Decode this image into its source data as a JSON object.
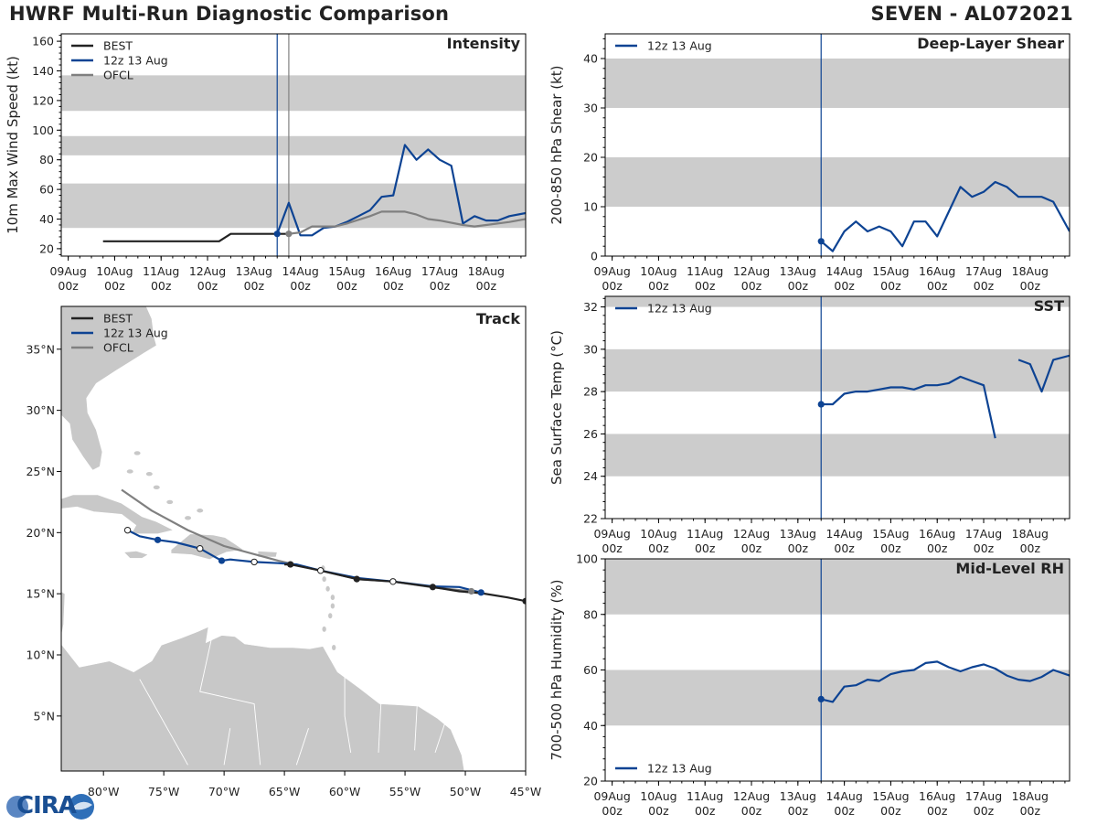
{
  "header": {
    "title": "HWRF Multi-Run Diagnostic Comparison",
    "storm": "SEVEN - AL072021"
  },
  "colors": {
    "best": "#222222",
    "run": "#0d4393",
    "ofcl": "#808080",
    "band": "#cccccc",
    "land": "#c8c8c8"
  },
  "logo": {
    "text": "CIRA",
    "icon": "cira-globe-icon"
  },
  "time_axis": {
    "ticks": [
      {
        "t": 0,
        "l1": "09Aug",
        "l2": "00z"
      },
      {
        "t": 1,
        "l1": "10Aug",
        "l2": "00z"
      },
      {
        "t": 2,
        "l1": "11Aug",
        "l2": "00z"
      },
      {
        "t": 3,
        "l1": "12Aug",
        "l2": "00z"
      },
      {
        "t": 4,
        "l1": "13Aug",
        "l2": "00z"
      },
      {
        "t": 5,
        "l1": "14Aug",
        "l2": "00z"
      },
      {
        "t": 6,
        "l1": "15Aug",
        "l2": "00z"
      },
      {
        "t": 7,
        "l1": "16Aug",
        "l2": "00z"
      },
      {
        "t": 8,
        "l1": "17Aug",
        "l2": "00z"
      },
      {
        "t": 9,
        "l1": "18Aug",
        "l2": "00z"
      }
    ],
    "range": [
      -0.15,
      9.85
    ]
  },
  "chart_data": [
    {
      "type": "line",
      "id": "intensity",
      "title": "Intensity",
      "ylabel": "10m Max Wind Speed (kt)",
      "xlabel": "",
      "ylim": [
        15,
        165
      ],
      "yticks": [
        20,
        40,
        60,
        80,
        100,
        120,
        140,
        160
      ],
      "bands": [
        [
          34,
          64
        ],
        [
          83,
          96
        ],
        [
          113,
          137
        ]
      ],
      "vlines": [
        {
          "t": 4.5,
          "series": "run"
        },
        {
          "t": 4.75,
          "series": "ofcl"
        }
      ],
      "legend": [
        {
          "label": "BEST",
          "series": "best"
        },
        {
          "label": "12z 13 Aug",
          "series": "run"
        },
        {
          "label": "OFCL",
          "series": "ofcl"
        }
      ],
      "legend_position": "top-left",
      "series": [
        {
          "name": "BEST",
          "key": "best",
          "points": [
            [
              0.75,
              25
            ],
            [
              1,
              25
            ],
            [
              1.5,
              25
            ],
            [
              2,
              25
            ],
            [
              2.5,
              25
            ],
            [
              3,
              25
            ],
            [
              3.25,
              25
            ],
            [
              3.5,
              30
            ],
            [
              4,
              30
            ],
            [
              4.5,
              30
            ],
            [
              4.75,
              30
            ]
          ]
        },
        {
          "name": "12z 13 Aug",
          "key": "run",
          "points": [
            [
              4.5,
              30
            ],
            [
              4.75,
              51
            ],
            [
              5,
              29
            ],
            [
              5.25,
              29
            ],
            [
              5.5,
              34
            ],
            [
              5.75,
              35
            ],
            [
              6,
              38
            ],
            [
              6.25,
              42
            ],
            [
              6.5,
              46
            ],
            [
              6.75,
              55
            ],
            [
              7,
              56
            ],
            [
              7.25,
              90
            ],
            [
              7.5,
              80
            ],
            [
              7.75,
              87
            ],
            [
              8,
              80
            ],
            [
              8.25,
              76
            ],
            [
              8.5,
              37
            ],
            [
              8.75,
              42
            ],
            [
              9,
              39
            ],
            [
              9.25,
              39
            ],
            [
              9.5,
              42
            ],
            [
              9.85,
              44
            ]
          ],
          "start_marker": true
        },
        {
          "name": "OFCL",
          "key": "ofcl",
          "points": [
            [
              4.75,
              30
            ],
            [
              5,
              31
            ],
            [
              5.25,
              35
            ],
            [
              5.5,
              35
            ],
            [
              5.75,
              35
            ],
            [
              6,
              37
            ],
            [
              6.5,
              42
            ],
            [
              6.75,
              45
            ],
            [
              7,
              45
            ],
            [
              7.25,
              45
            ],
            [
              7.5,
              43
            ],
            [
              7.75,
              40
            ],
            [
              8,
              39
            ],
            [
              8.5,
              36
            ],
            [
              8.75,
              35
            ],
            [
              9,
              36
            ],
            [
              9.5,
              38
            ],
            [
              9.85,
              40
            ]
          ],
          "start_marker": true
        }
      ]
    },
    {
      "type": "line",
      "id": "shear",
      "title": "Deep-Layer Shear",
      "ylabel": "200-850 hPa Shear (kt)",
      "xlabel": "",
      "ylim": [
        0,
        45
      ],
      "yticks": [
        0,
        10,
        20,
        30,
        40
      ],
      "bands": [
        [
          10,
          20
        ],
        [
          30,
          40
        ]
      ],
      "vlines": [
        {
          "t": 4.5,
          "series": "run"
        }
      ],
      "legend": [
        {
          "label": "12z 13 Aug",
          "series": "run"
        }
      ],
      "legend_position": "top-left",
      "series": [
        {
          "name": "12z 13 Aug",
          "key": "run",
          "points": [
            [
              4.5,
              3
            ],
            [
              4.75,
              1
            ],
            [
              5,
              5
            ],
            [
              5.25,
              7
            ],
            [
              5.5,
              5
            ],
            [
              5.75,
              6
            ],
            [
              6,
              5
            ],
            [
              6.25,
              2
            ],
            [
              6.5,
              7
            ],
            [
              6.75,
              7
            ],
            [
              7,
              4
            ],
            [
              7.25,
              9
            ],
            [
              7.5,
              14
            ],
            [
              7.75,
              12
            ],
            [
              8,
              13
            ],
            [
              8.25,
              15
            ],
            [
              8.5,
              14
            ],
            [
              8.75,
              12
            ],
            [
              9,
              12
            ],
            [
              9.25,
              12
            ],
            [
              9.5,
              11
            ],
            [
              9.85,
              5
            ]
          ],
          "start_marker": true
        }
      ]
    },
    {
      "type": "line",
      "id": "sst",
      "title": "SST",
      "ylabel": "Sea Surface Temp (°C)",
      "xlabel": "",
      "ylim": [
        22,
        32.5
      ],
      "yticks": [
        22,
        24,
        26,
        28,
        30,
        32
      ],
      "bands": [
        [
          24,
          26
        ],
        [
          28,
          30
        ],
        [
          32,
          33
        ]
      ],
      "vlines": [
        {
          "t": 4.5,
          "series": "run"
        }
      ],
      "legend": [
        {
          "label": "12z 13 Aug",
          "series": "run"
        }
      ],
      "legend_position": "top-left",
      "series": [
        {
          "name": "12z 13 Aug",
          "key": "run",
          "segments": [
            [
              [
                4.5,
                27.4
              ],
              [
                4.75,
                27.4
              ],
              [
                5,
                27.9
              ],
              [
                5.25,
                28.0
              ],
              [
                5.5,
                28.0
              ],
              [
                5.75,
                28.1
              ],
              [
                6,
                28.2
              ],
              [
                6.25,
                28.2
              ],
              [
                6.5,
                28.1
              ],
              [
                6.75,
                28.3
              ],
              [
                7,
                28.3
              ],
              [
                7.25,
                28.4
              ],
              [
                7.5,
                28.7
              ],
              [
                7.75,
                28.5
              ],
              [
                8,
                28.3
              ],
              [
                8.25,
                25.8
              ]
            ],
            [
              [
                8.75,
                29.5
              ],
              [
                9,
                29.3
              ],
              [
                9.25,
                28.0
              ],
              [
                9.5,
                29.5
              ],
              [
                9.85,
                29.7
              ]
            ]
          ],
          "start_marker": true
        }
      ]
    },
    {
      "type": "line",
      "id": "rh",
      "title": "Mid-Level RH",
      "ylabel": "700-500 hPa Humidity (%)",
      "xlabel": "",
      "ylim": [
        20,
        100
      ],
      "yticks": [
        20,
        40,
        60,
        80,
        100
      ],
      "bands": [
        [
          40,
          60
        ],
        [
          80,
          100
        ]
      ],
      "vlines": [
        {
          "t": 4.5,
          "series": "run"
        }
      ],
      "legend": [
        {
          "label": "12z 13 Aug",
          "series": "run"
        }
      ],
      "legend_position": "bottom-left",
      "series": [
        {
          "name": "12z 13 Aug",
          "key": "run",
          "points": [
            [
              4.5,
              49.5
            ],
            [
              4.75,
              48.5
            ],
            [
              5,
              54
            ],
            [
              5.25,
              54.5
            ],
            [
              5.5,
              56.5
            ],
            [
              5.75,
              56
            ],
            [
              6,
              58.5
            ],
            [
              6.25,
              59.5
            ],
            [
              6.5,
              60
            ],
            [
              6.75,
              62.5
            ],
            [
              7,
              63
            ],
            [
              7.25,
              61
            ],
            [
              7.5,
              59.5
            ],
            [
              7.75,
              61
            ],
            [
              8,
              62
            ],
            [
              8.25,
              60.5
            ],
            [
              8.5,
              58
            ],
            [
              8.75,
              56.5
            ],
            [
              9,
              56
            ],
            [
              9.25,
              57.5
            ],
            [
              9.5,
              60
            ],
            [
              9.85,
              58
            ]
          ],
          "start_marker": true
        }
      ]
    },
    {
      "type": "scatter",
      "id": "track",
      "title": "Track",
      "xlabel": "",
      "ylabel": "",
      "xlim": [
        -83.5,
        -45
      ],
      "ylim": [
        0.5,
        38.5
      ],
      "xticks": [
        {
          "v": -80,
          "label": "80°W"
        },
        {
          "v": -75,
          "label": "75°W"
        },
        {
          "v": -70,
          "label": "70°W"
        },
        {
          "v": -65,
          "label": "65°W"
        },
        {
          "v": -60,
          "label": "60°W"
        },
        {
          "v": -55,
          "label": "55°W"
        },
        {
          "v": -50,
          "label": "50°W"
        },
        {
          "v": -45,
          "label": "45°W"
        }
      ],
      "yticks": [
        {
          "v": 5,
          "label": "5°N"
        },
        {
          "v": 10,
          "label": "10°N"
        },
        {
          "v": 15,
          "label": "15°N"
        },
        {
          "v": 20,
          "label": "20°N"
        },
        {
          "v": 25,
          "label": "25°N"
        },
        {
          "v": 30,
          "label": "30°N"
        },
        {
          "v": 35,
          "label": "35°N"
        }
      ],
      "legend": [
        {
          "label": "BEST",
          "series": "best"
        },
        {
          "label": "12z 13 Aug",
          "series": "run"
        },
        {
          "label": "OFCL",
          "series": "ofcl"
        }
      ],
      "legend_position": "top-left",
      "series": [
        {
          "name": "BEST",
          "key": "best",
          "points": [
            [
              -45,
              14.4
            ],
            [
              -46.5,
              14.7
            ],
            [
              -48.7,
              15.05
            ],
            [
              -50.5,
              15.2
            ],
            [
              -52.7,
              15.55
            ],
            [
              -56,
              16
            ],
            [
              -59,
              16.2
            ],
            [
              -62,
              16.9
            ],
            [
              -64.5,
              17.4
            ],
            [
              -65,
              17.4
            ]
          ],
          "markers": [
            [
              -45,
              14.4
            ],
            [
              -52.7,
              15.55
            ],
            [
              -59,
              16.2
            ],
            [
              -64.5,
              17.4
            ]
          ]
        },
        {
          "name": "12z 13 Aug",
          "key": "run",
          "points": [
            [
              -48.7,
              15.1
            ],
            [
              -50.5,
              15.55
            ],
            [
              -52.7,
              15.6
            ],
            [
              -56,
              16.0
            ],
            [
              -59,
              16.3
            ],
            [
              -62,
              16.9
            ],
            [
              -64,
              17.4
            ],
            [
              -65.5,
              17.5
            ],
            [
              -67.5,
              17.6
            ],
            [
              -69.5,
              17.8
            ],
            [
              -70.2,
              17.7
            ],
            [
              -72,
              18.7
            ],
            [
              -74,
              19.2
            ],
            [
              -75.5,
              19.4
            ],
            [
              -77,
              19.7
            ],
            [
              -78,
              20.2
            ]
          ],
          "markers": [
            [
              -48.7,
              15.1
            ],
            [
              -70.2,
              17.7
            ],
            [
              -75.5,
              19.4
            ]
          ],
          "open_markers": [
            [
              -56,
              16.0
            ],
            [
              -62,
              16.9
            ],
            [
              -67.5,
              17.6
            ],
            [
              -72,
              18.7
            ],
            [
              -78,
              20.2
            ]
          ]
        },
        {
          "name": "OFCL",
          "key": "ofcl",
          "points": [
            [
              -49.5,
              15.2
            ],
            [
              -52.5,
              15.5
            ],
            [
              -56,
              16.0
            ],
            [
              -59,
              16.2
            ],
            [
              -62,
              16.9
            ],
            [
              -65.5,
              17.7
            ],
            [
              -70,
              18.9
            ],
            [
              -73,
              20.2
            ],
            [
              -76,
              21.8
            ],
            [
              -78.5,
              23.5
            ]
          ],
          "markers": [
            [
              -49.5,
              15.2
            ]
          ]
        }
      ]
    }
  ]
}
